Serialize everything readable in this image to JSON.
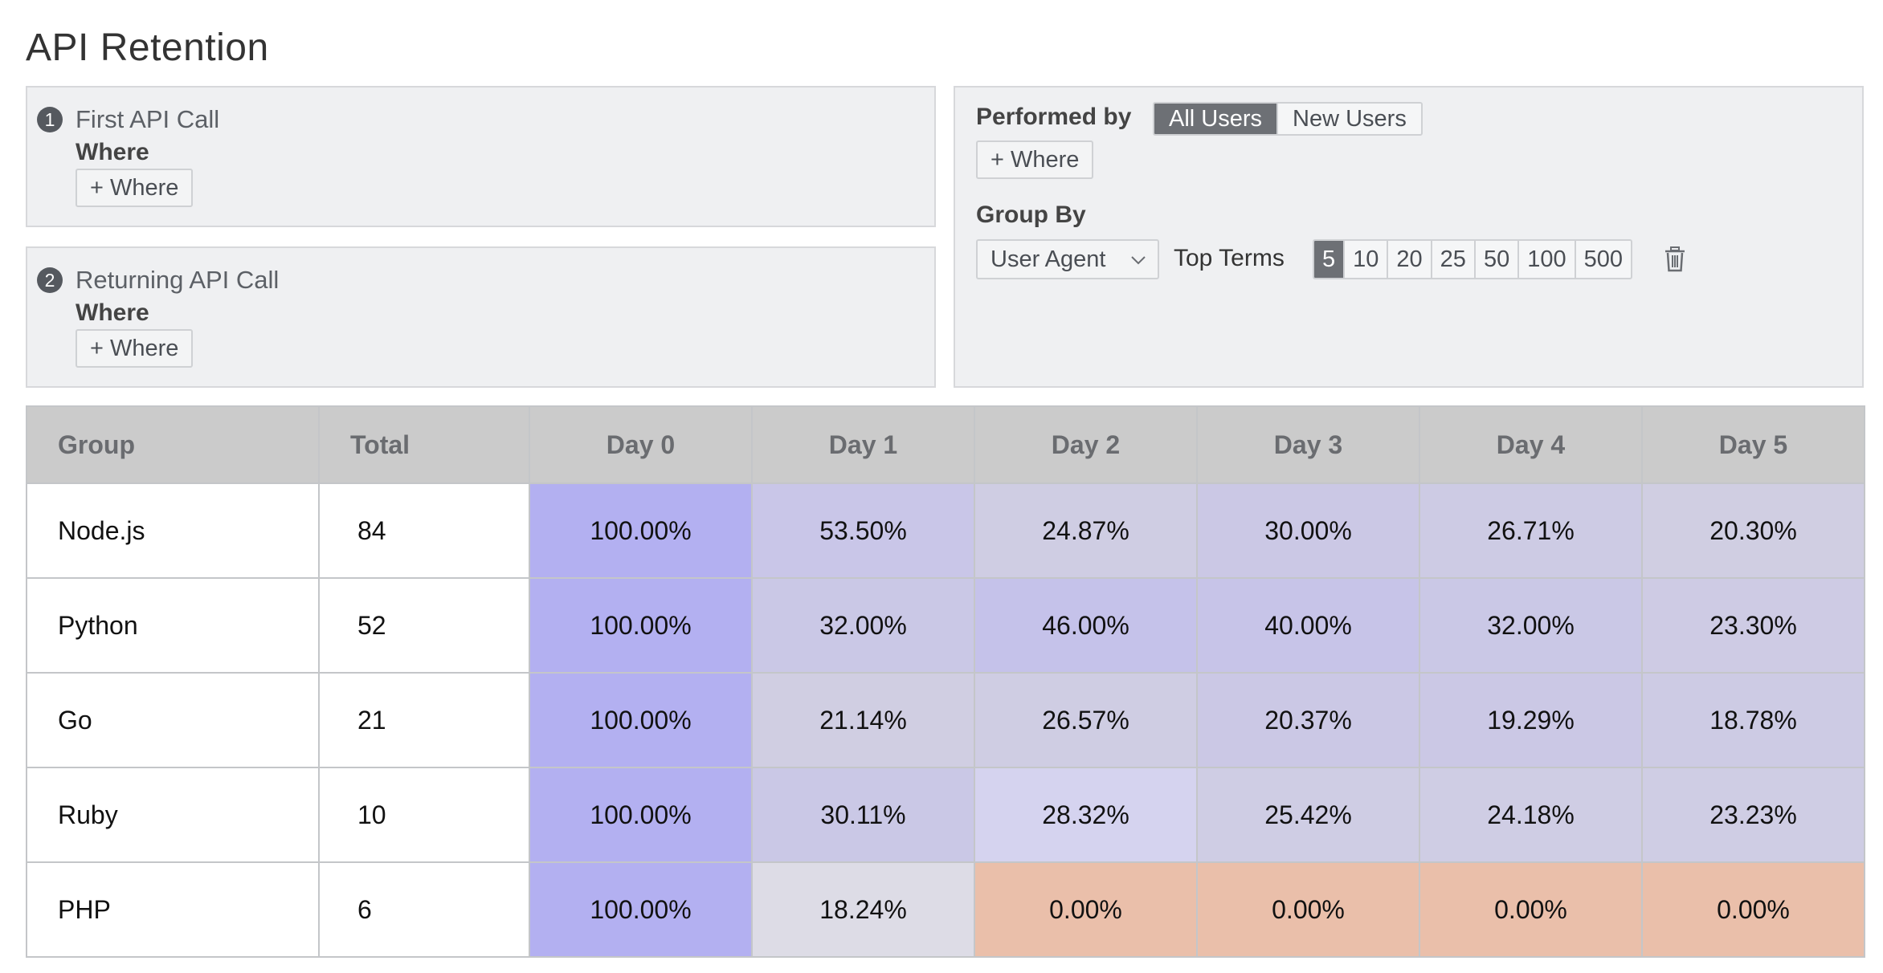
{
  "page": {
    "title": "API Retention"
  },
  "steps": [
    {
      "number": "1",
      "name": "First API Call",
      "where_label": "Where",
      "where_button": "+ Where"
    },
    {
      "number": "2",
      "name": "Returning API Call",
      "where_label": "Where",
      "where_button": "+ Where"
    }
  ],
  "settings": {
    "performed_by_label": "Performed by",
    "user_filter": {
      "options": [
        "All Users",
        "New Users"
      ],
      "selected": "All Users"
    },
    "where_button": "+ Where",
    "group_by_label": "Group By",
    "group_by_value": "User Agent",
    "top_terms_label": "Top Terms",
    "top_terms": {
      "options": [
        "5",
        "10",
        "20",
        "25",
        "50",
        "100",
        "500"
      ],
      "selected": "5"
    }
  },
  "table": {
    "columns": [
      "Group",
      "Total",
      "Day 0",
      "Day 1",
      "Day 2",
      "Day 3",
      "Day 4",
      "Day 5"
    ],
    "rows": [
      {
        "group": "Node.js",
        "total": "84",
        "values": [
          "100.00%",
          "53.50%",
          "24.87%",
          "30.00%",
          "26.71%",
          "20.30%"
        ],
        "colors": [
          "#b3b0f1",
          "#c9c6e8",
          "#cfcde3",
          "#cbc8e5",
          "#cdcbe4",
          "#d0cee2"
        ]
      },
      {
        "group": "Python",
        "total": "52",
        "values": [
          "100.00%",
          "32.00%",
          "46.00%",
          "40.00%",
          "32.00%",
          "23.30%"
        ],
        "colors": [
          "#b3b0f1",
          "#cac8e6",
          "#c5c2ea",
          "#c7c4e8",
          "#cac8e6",
          "#cecbe4"
        ]
      },
      {
        "group": "Go",
        "total": "21",
        "values": [
          "100.00%",
          "21.14%",
          "26.57%",
          "20.37%",
          "19.29%",
          "18.78%"
        ],
        "colors": [
          "#b3b0f1",
          "#d0cee2",
          "#cfcde3",
          "#cbc8e5",
          "#cbc8e5",
          "#cdcbe4"
        ]
      },
      {
        "group": "Ruby",
        "total": "10",
        "values": [
          "100.00%",
          "30.11%",
          "28.32%",
          "25.42%",
          "24.18%",
          "23.23%"
        ],
        "colors": [
          "#b3b0f1",
          "#cac8e6",
          "#d5d3ef",
          "#cfcde4",
          "#cfcde4",
          "#cfcde4"
        ]
      },
      {
        "group": "PHP",
        "total": "6",
        "values": [
          "100.00%",
          "18.24%",
          "0.00%",
          "0.00%",
          "0.00%",
          "0.00%"
        ],
        "colors": [
          "#b3b0f1",
          "#dddce6",
          "#eabfaa",
          "#eabfaa",
          "#eabfaa",
          "#eabfaa"
        ]
      }
    ]
  },
  "icons": {
    "step_badge": "numbered-circle-icon",
    "dropdown": "chevron-down-icon",
    "delete": "trash-icon"
  }
}
